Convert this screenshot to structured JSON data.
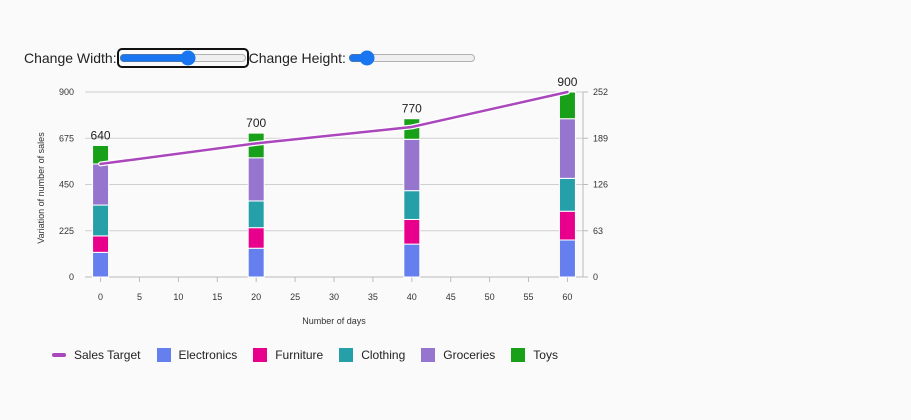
{
  "controls": {
    "width_label": "Change Width:",
    "height_label": "Change Height:",
    "width_value": 55,
    "height_value": 10
  },
  "colors": {
    "Sales Target": "#ab47bc",
    "Electronics": "#6580ee",
    "Furniture": "#e8008c",
    "Clothing": "#26a0a8",
    "Groceries": "#9575cd",
    "Toys": "#18a018"
  },
  "chart_data": {
    "type": "bar",
    "stacked": true,
    "xlabel": "Number of days",
    "ylabel": "Variation of number of sales",
    "xlim": [
      -2,
      62
    ],
    "xticks": [
      0,
      5,
      10,
      15,
      20,
      25,
      30,
      35,
      40,
      45,
      50,
      55,
      60
    ],
    "ylim": [
      0,
      900
    ],
    "yticks": [
      0,
      225,
      450,
      675,
      900
    ],
    "y2lim": [
      0,
      252
    ],
    "y2ticks": [
      0,
      63,
      126,
      189,
      252
    ],
    "grid": true,
    "legend_position": "bottom-left",
    "x": [
      0,
      20,
      40,
      60
    ],
    "series": [
      {
        "name": "Electronics",
        "values": [
          120,
          140,
          160,
          180
        ]
      },
      {
        "name": "Furniture",
        "values": [
          80,
          100,
          120,
          140
        ]
      },
      {
        "name": "Clothing",
        "values": [
          150,
          130,
          140,
          160
        ]
      },
      {
        "name": "Groceries",
        "values": [
          200,
          210,
          250,
          290
        ]
      },
      {
        "name": "Toys",
        "values": [
          90,
          120,
          100,
          130
        ]
      }
    ],
    "totals": [
      "640",
      "700",
      "770",
      "900"
    ],
    "line_series": {
      "name": "Sales Target",
      "x": [
        0,
        20,
        40,
        60
      ],
      "values": [
        550,
        650,
        730,
        900
      ]
    },
    "legend": [
      "Sales Target",
      "Electronics",
      "Furniture",
      "Clothing",
      "Groceries",
      "Toys"
    ]
  }
}
